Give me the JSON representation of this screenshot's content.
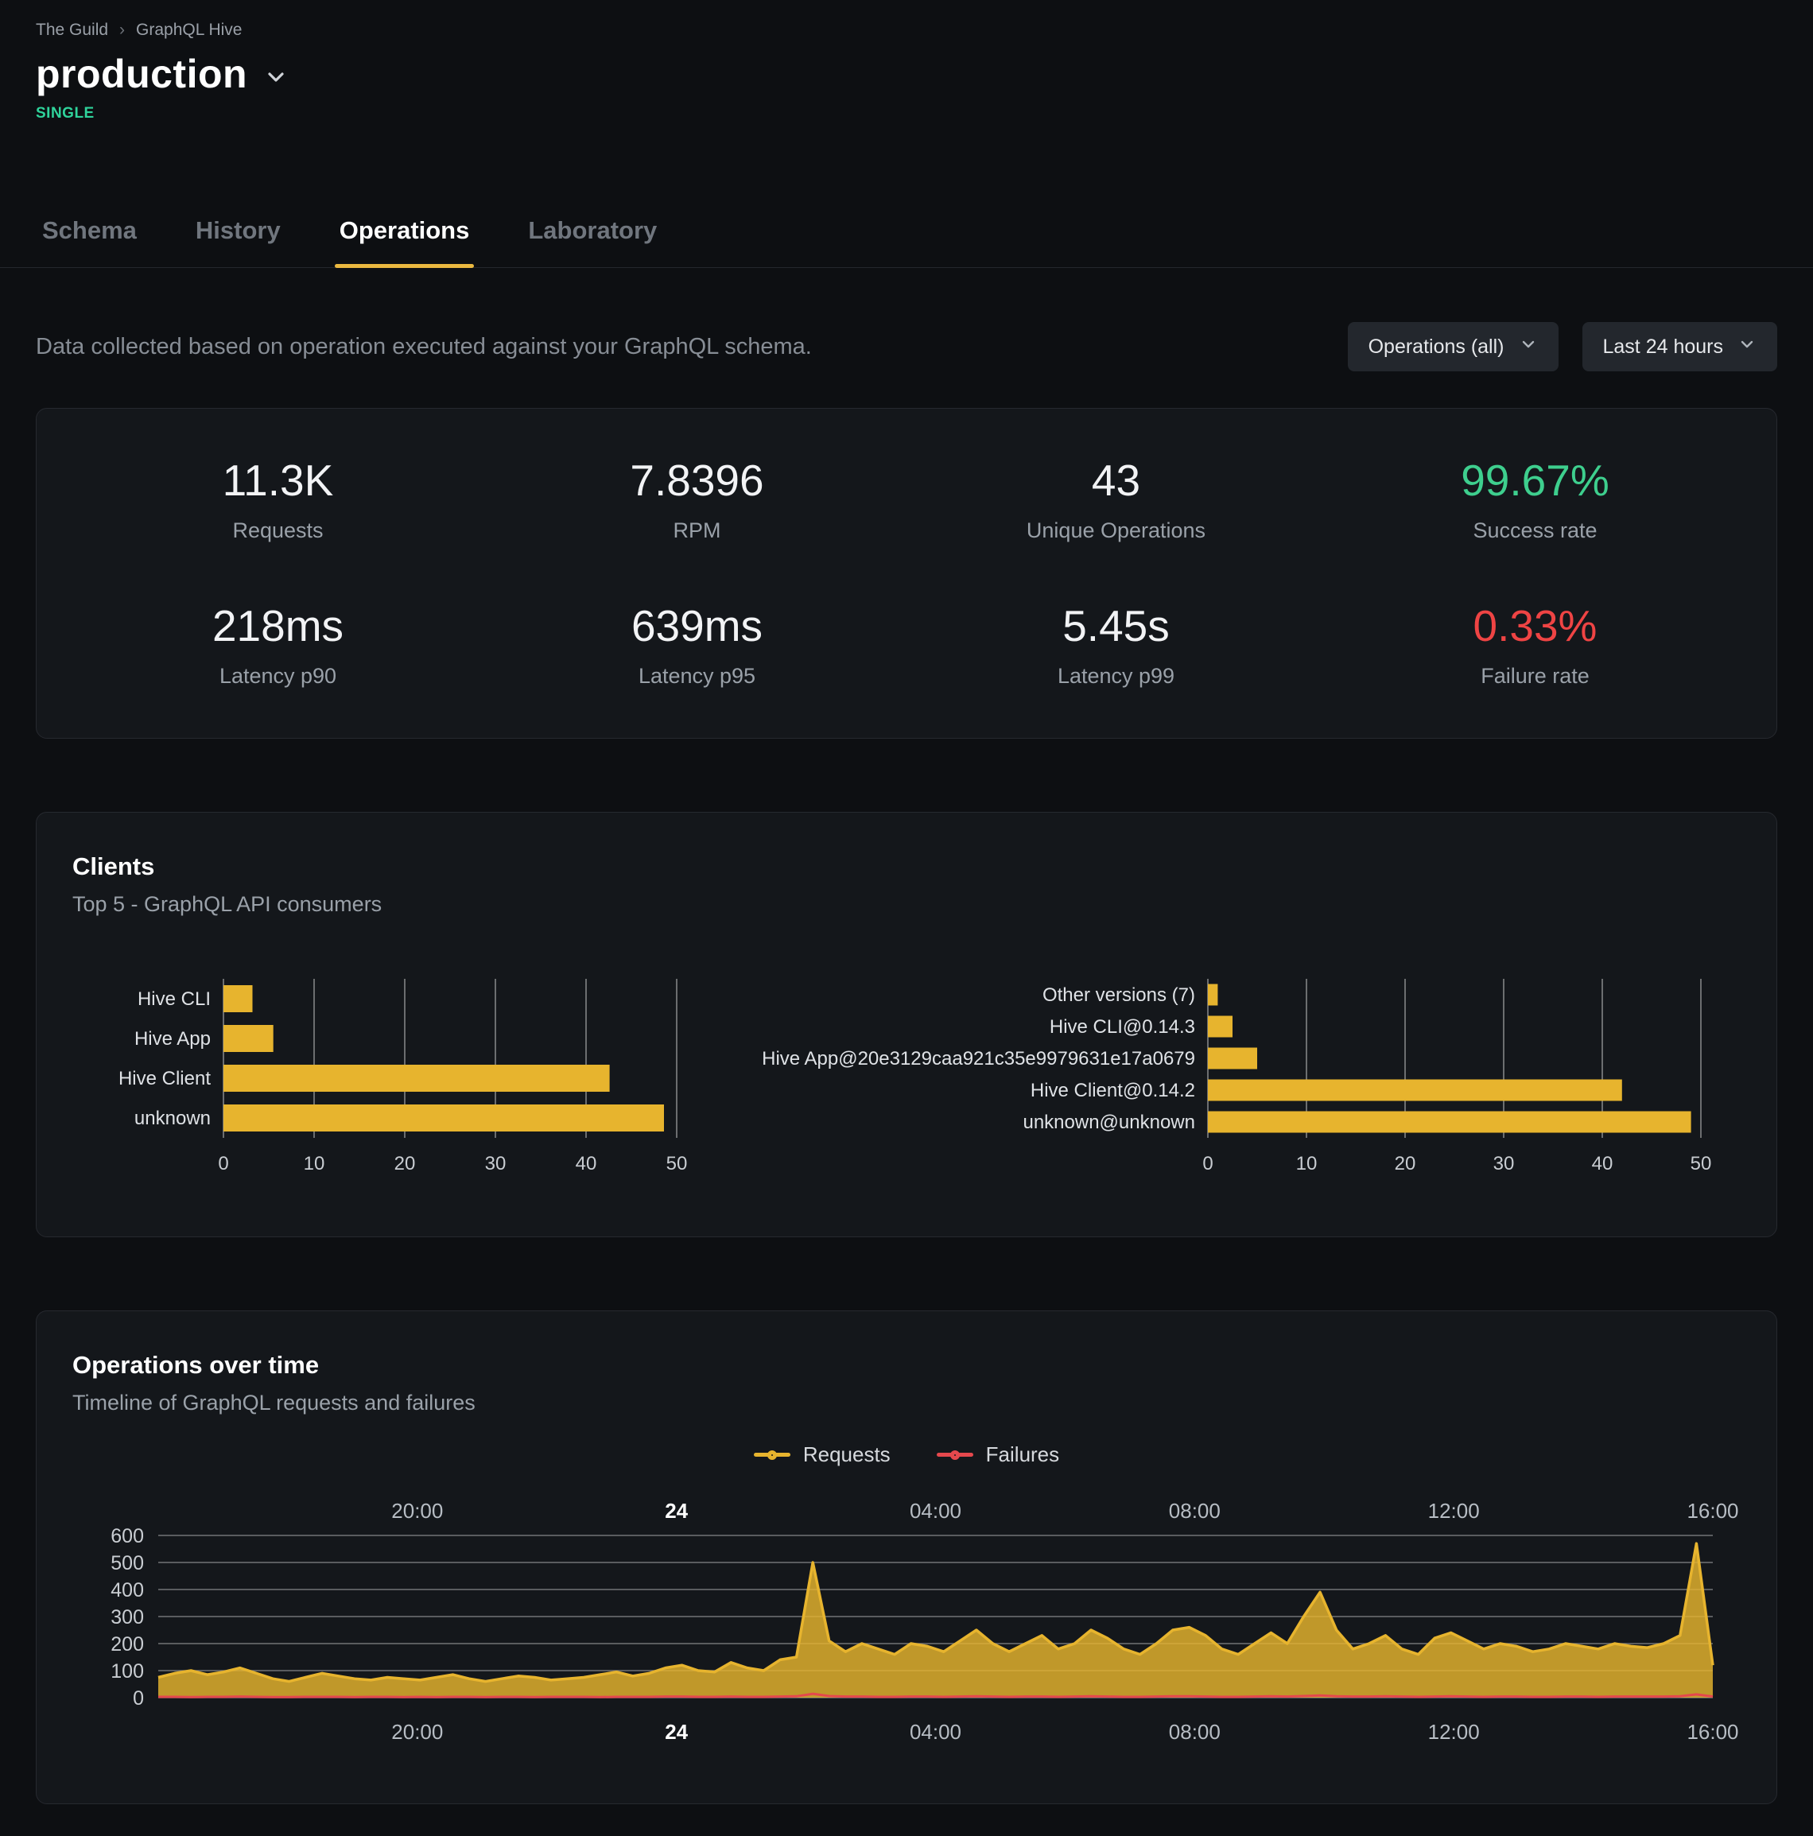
{
  "breadcrumb": {
    "items": [
      "The Guild",
      "GraphQL Hive"
    ],
    "separator": "›"
  },
  "header": {
    "title": "production",
    "badge": "SINGLE"
  },
  "tabs": [
    {
      "label": "Schema",
      "active": false
    },
    {
      "label": "History",
      "active": false
    },
    {
      "label": "Operations",
      "active": true
    },
    {
      "label": "Laboratory",
      "active": false
    }
  ],
  "filters": {
    "description": "Data collected based on operation executed against your GraphQL schema.",
    "operations_dropdown": "Operations (all)",
    "range_dropdown": "Last 24 hours"
  },
  "stats": [
    {
      "value": "11.3K",
      "label": "Requests"
    },
    {
      "value": "7.8396",
      "label": "RPM"
    },
    {
      "value": "43",
      "label": "Unique Operations"
    },
    {
      "value": "99.67%",
      "label": "Success rate"
    },
    {
      "value": "218ms",
      "label": "Latency p90"
    },
    {
      "value": "639ms",
      "label": "Latency p95"
    },
    {
      "value": "5.45s",
      "label": "Latency p99"
    },
    {
      "value": "0.33%",
      "label": "Failure rate"
    }
  ],
  "clients_section": {
    "title": "Clients",
    "subtitle": "Top 5 - GraphQL API consumers"
  },
  "ops_section": {
    "title": "Operations over time",
    "subtitle": "Timeline of GraphQL requests and failures"
  },
  "colors": {
    "accent_yellow": "#eab840",
    "bar_yellow": "#e7b42e",
    "success_green": "#3ecf8e",
    "failure_red": "#ef4444",
    "badge_teal": "#2fd39b",
    "failures_line": "#e5484d"
  },
  "chart_data": [
    {
      "type": "bar",
      "orientation": "horizontal",
      "title": "Clients by name",
      "categories": [
        "Hive CLI",
        "Hive App",
        "Hive Client",
        "unknown"
      ],
      "values": [
        3.2,
        5.5,
        42.6,
        48.6
      ],
      "xlim": [
        0,
        50
      ],
      "xticks": [
        0,
        10,
        20,
        30,
        40,
        50
      ],
      "bar_color": "#e7b42e",
      "grid": "vertical"
    },
    {
      "type": "bar",
      "orientation": "horizontal",
      "title": "Clients by version",
      "categories": [
        "Other versions (7)",
        "Hive CLI@0.14.3",
        "Hive App@20e3129caa921c35e9979631e17a0679",
        "Hive Client@0.14.2",
        "unknown@unknown"
      ],
      "values": [
        1,
        2.5,
        5,
        42,
        49
      ],
      "xlim": [
        0,
        50
      ],
      "xticks": [
        0,
        10,
        20,
        30,
        40,
        50
      ],
      "bar_color": "#e7b42e",
      "grid": "vertical"
    },
    {
      "type": "area",
      "title": "Operations over time",
      "x_ticks": [
        "20:00",
        "24",
        "04:00",
        "08:00",
        "12:00",
        "16:00"
      ],
      "emphasis_tick": "24",
      "x_span_hours": 24,
      "ylim": [
        0,
        600
      ],
      "yticks": [
        0,
        100,
        200,
        300,
        400,
        500,
        600
      ],
      "legend_position": "top-center",
      "series": [
        {
          "name": "Requests",
          "color": "#e7b42e",
          "values": [
            75,
            90,
            100,
            85,
            95,
            110,
            90,
            70,
            60,
            75,
            90,
            80,
            70,
            65,
            75,
            70,
            65,
            75,
            85,
            70,
            60,
            70,
            80,
            75,
            65,
            70,
            75,
            85,
            95,
            80,
            90,
            110,
            120,
            100,
            95,
            130,
            110,
            100,
            140,
            150,
            500,
            210,
            170,
            200,
            180,
            160,
            200,
            190,
            170,
            210,
            250,
            200,
            170,
            200,
            230,
            180,
            200,
            250,
            220,
            180,
            160,
            200,
            250,
            260,
            230,
            180,
            160,
            200,
            240,
            200,
            300,
            390,
            250,
            180,
            200,
            230,
            180,
            160,
            220,
            240,
            210,
            180,
            200,
            190,
            170,
            180,
            200,
            190,
            180,
            200,
            190,
            185,
            200,
            230,
            570,
            120
          ]
        },
        {
          "name": "Failures",
          "color": "#e5484d",
          "values": [
            3,
            3,
            2,
            3,
            3,
            4,
            3,
            2,
            2,
            3,
            3,
            3,
            2,
            3,
            3,
            2,
            3,
            2,
            3,
            3,
            2,
            3,
            3,
            2,
            3,
            3,
            3,
            2,
            3,
            3,
            3,
            4,
            4,
            3,
            3,
            4,
            3,
            3,
            4,
            5,
            14,
            6,
            4,
            4,
            3,
            3,
            4,
            4,
            3,
            4,
            5,
            4,
            3,
            4,
            4,
            3,
            4,
            5,
            4,
            3,
            3,
            4,
            5,
            5,
            4,
            3,
            3,
            4,
            5,
            4,
            6,
            8,
            5,
            4,
            4,
            5,
            4,
            3,
            4,
            5,
            4,
            3,
            4,
            4,
            3,
            3,
            4,
            4,
            3,
            4,
            4,
            4,
            4,
            5,
            12,
            4
          ]
        }
      ]
    }
  ]
}
